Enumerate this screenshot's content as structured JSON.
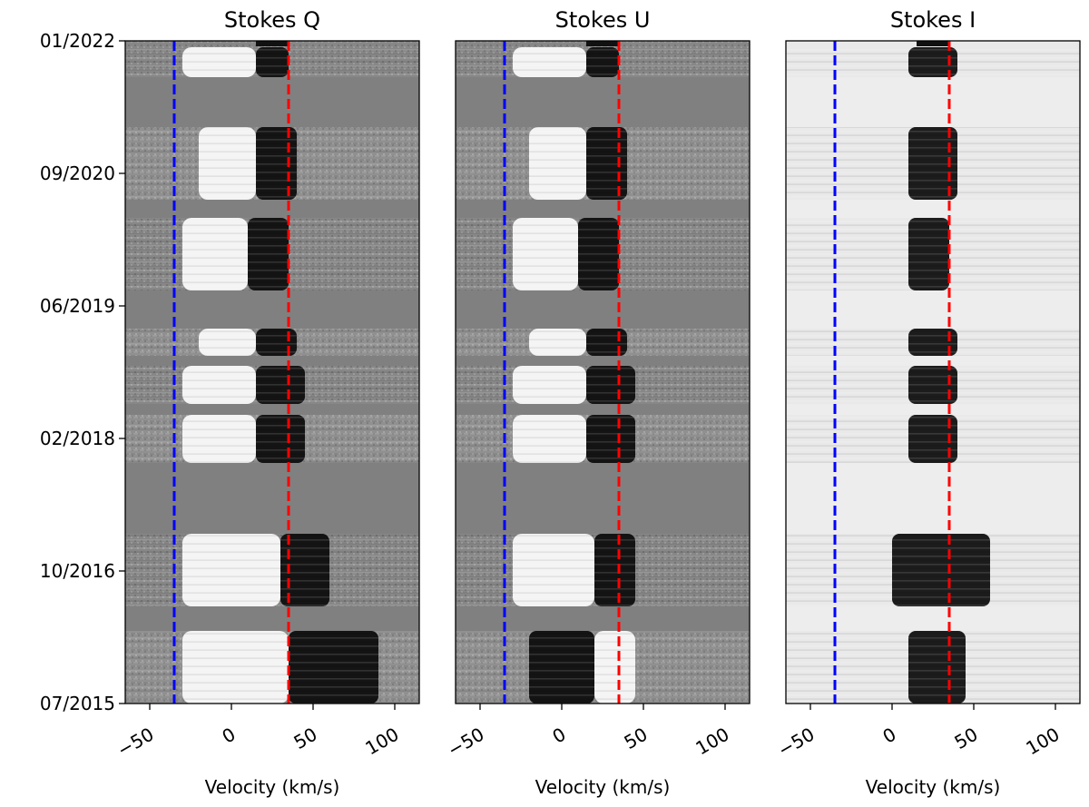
{
  "figure": {
    "shared_xlabel": "Velocity (km/s)"
  },
  "chart_data": [
    {
      "type": "heatmap",
      "title": "Stokes Q",
      "xlabel": "Velocity (km/s)",
      "xlim": [
        -65,
        115
      ],
      "xticks": [
        -50,
        0,
        50,
        100
      ],
      "xtick_labels": [
        "−50",
        "0",
        "50",
        "100"
      ],
      "yticks": [
        "01/2022",
        "09/2020",
        "06/2019",
        "02/2018",
        "10/2016",
        "07/2015"
      ],
      "ylabel": "",
      "colormap": "gray",
      "background_value": 0.5,
      "reference_lines": [
        {
          "x": -35,
          "color": "#0000ff",
          "style": "dashed"
        },
        {
          "x": 35,
          "color": "#ff0000",
          "style": "dashed"
        }
      ],
      "epochs": [
        {
          "rows": "late 2021",
          "bright_range": [
            -30,
            15
          ],
          "dark_range": [
            15,
            35
          ]
        },
        {
          "rows": "late 2020",
          "bright_range": [
            -20,
            15
          ],
          "dark_range": [
            15,
            40
          ]
        },
        {
          "rows": "2019-2020",
          "bright_range": [
            -30,
            10
          ],
          "dark_range": [
            10,
            35
          ]
        },
        {
          "rows": "2018-2019",
          "bright_range": [
            -20,
            15
          ],
          "dark_range": [
            15,
            40
          ]
        },
        {
          "rows": "2017-2018",
          "bright_range": [
            -30,
            15
          ],
          "dark_range": [
            15,
            45
          ]
        },
        {
          "rows": "late 2016",
          "bright_range": [
            -30,
            30
          ],
          "dark_range": [
            30,
            60
          ]
        },
        {
          "rows": "2015-2016",
          "bright_range": [
            -30,
            35
          ],
          "dark_range": [
            35,
            90
          ]
        }
      ]
    },
    {
      "type": "heatmap",
      "title": "Stokes U",
      "xlabel": "Velocity (km/s)",
      "xlim": [
        -65,
        115
      ],
      "xticks": [
        -50,
        0,
        50,
        100
      ],
      "xtick_labels": [
        "−50",
        "0",
        "50",
        "100"
      ],
      "yticks": [],
      "colormap": "gray",
      "background_value": 0.5,
      "reference_lines": [
        {
          "x": -35,
          "color": "#0000ff",
          "style": "dashed"
        },
        {
          "x": 35,
          "color": "#ff0000",
          "style": "dashed"
        }
      ],
      "epochs": [
        {
          "rows": "late 2021",
          "bright_range": [
            -30,
            15
          ],
          "dark_range": [
            15,
            35
          ]
        },
        {
          "rows": "late 2020",
          "bright_range": [
            -20,
            15
          ],
          "dark_range": [
            15,
            40
          ]
        },
        {
          "rows": "2019-2020",
          "bright_range": [
            -30,
            10
          ],
          "dark_range": [
            10,
            35
          ]
        },
        {
          "rows": "2018-2019",
          "bright_range": [
            -20,
            15
          ],
          "dark_range": [
            15,
            40
          ]
        },
        {
          "rows": "2017-2018",
          "bright_range": [
            -30,
            15
          ],
          "dark_range": [
            15,
            45
          ]
        },
        {
          "rows": "late 2016",
          "bright_range": [
            -30,
            20
          ],
          "dark_range": [
            20,
            45
          ]
        },
        {
          "rows": "2015-2016",
          "dark_range": [
            -20,
            20
          ],
          "bright_range": [
            20,
            45
          ]
        }
      ]
    },
    {
      "type": "heatmap",
      "title": "Stokes I",
      "xlabel": "Velocity (km/s)",
      "xlim": [
        -65,
        115
      ],
      "xticks": [
        -50,
        0,
        50,
        100
      ],
      "xtick_labels": [
        "−50",
        "0",
        "50",
        "100"
      ],
      "yticks": [],
      "colormap": "gray",
      "background_value": 0.93,
      "reference_lines": [
        {
          "x": -35,
          "color": "#0000ff",
          "style": "dashed"
        },
        {
          "x": 35,
          "color": "#ff0000",
          "style": "dashed"
        }
      ],
      "epochs": [
        {
          "rows": "late 2021",
          "dark_range": [
            10,
            40
          ]
        },
        {
          "rows": "late 2020",
          "dark_range": [
            10,
            40
          ]
        },
        {
          "rows": "2019-2020",
          "dark_range": [
            10,
            35
          ]
        },
        {
          "rows": "2018-2019",
          "dark_range": [
            10,
            40
          ]
        },
        {
          "rows": "2017-2018",
          "dark_range": [
            10,
            40
          ]
        },
        {
          "rows": "late 2016",
          "dark_range": [
            0,
            60
          ]
        },
        {
          "rows": "2015-2016",
          "dark_range": [
            10,
            45
          ]
        }
      ]
    }
  ]
}
